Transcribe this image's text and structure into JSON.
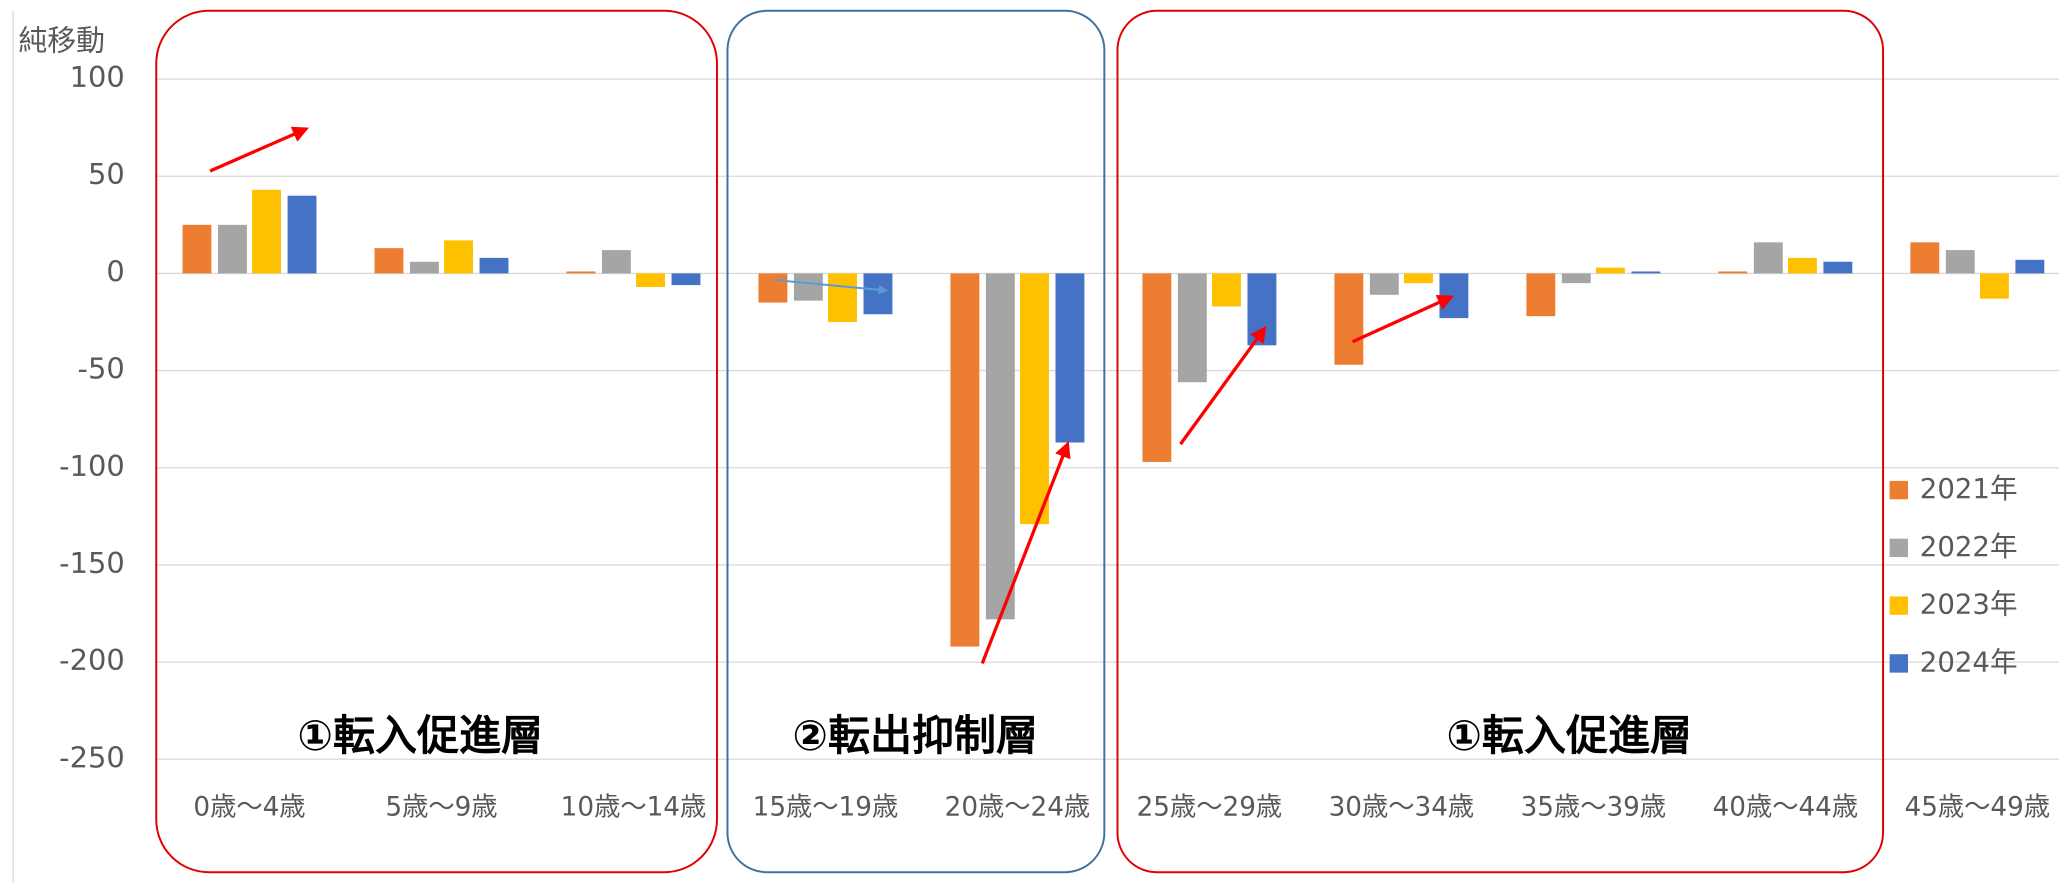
{
  "chart_data": {
    "type": "bar",
    "y_label": "純移動",
    "categories": [
      "0歳～4歳",
      "5歳～9歳",
      "10歳～14歳",
      "15歳～19歳",
      "20歳～24歳",
      "25歳～29歳",
      "30歳～34歳",
      "35歳～39歳",
      "40歳～44歳",
      "45歳～49歳"
    ],
    "series": [
      {
        "name": "2021年",
        "color": "#ED7D31",
        "values": [
          25,
          13,
          1,
          -15,
          -192,
          -97,
          -47,
          -22,
          1,
          16
        ]
      },
      {
        "name": "2022年",
        "color": "#A5A5A5",
        "values": [
          25,
          6,
          12,
          -14,
          -178,
          -56,
          -11,
          -5,
          16,
          12
        ]
      },
      {
        "name": "2023年",
        "color": "#FFC000",
        "values": [
          43,
          17,
          -7,
          -25,
          -129,
          -17,
          -5,
          3,
          8,
          -13
        ]
      },
      {
        "name": "2024年",
        "color": "#4472C4",
        "values": [
          40,
          8,
          -6,
          -21,
          -87,
          -37,
          -23,
          1,
          6,
          7
        ]
      }
    ],
    "ylim": [
      -275,
      100
    ],
    "yticks": [
      100,
      50,
      0,
      -50,
      -100,
      -150,
      -200,
      -250
    ],
    "grid": true,
    "legend": "right",
    "annotations": [
      "①転入促進層",
      "②転出抑制層",
      "①転入促進層"
    ]
  }
}
